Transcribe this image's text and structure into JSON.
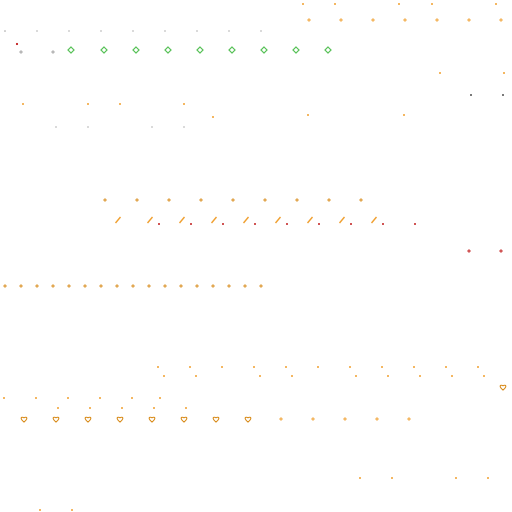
{
  "scene": {
    "background": "#ffffff",
    "colors": {
      "orange": "#f0a030",
      "dark_orange": "#d88b1a",
      "green": "#55c055",
      "red": "#c21e1e",
      "gray": "#a0a0a0",
      "dark_gray": "#505050",
      "light_gray": "#cfcfcf"
    },
    "sprite_types": [
      "dot-marker",
      "cross-marker",
      "diamond-marker",
      "slash-marker",
      "heart-marker",
      "tick-marker"
    ]
  }
}
